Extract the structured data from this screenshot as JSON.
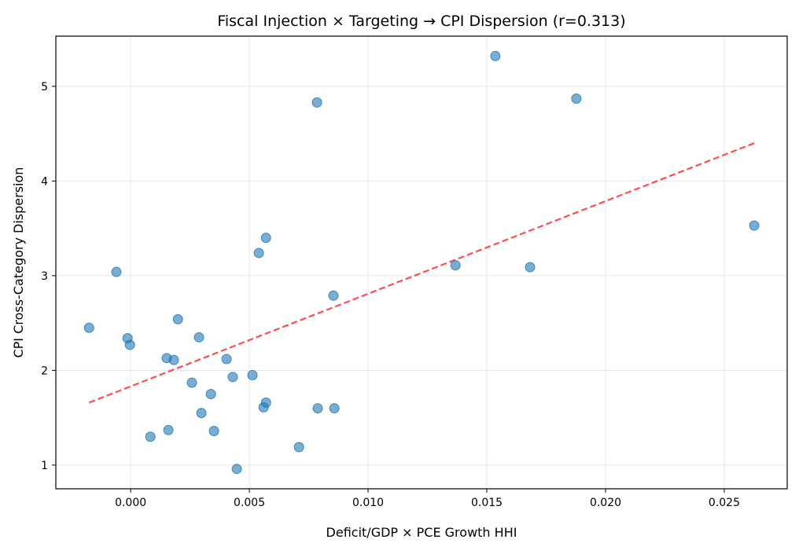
{
  "chart_data": {
    "type": "scatter",
    "title": "Fiscal Injection × Targeting → CPI Dispersion (r=0.313)",
    "xlabel": "Deficit/GDP × PCE Growth HHI",
    "ylabel": "CPI Cross-Category Dispersion",
    "xlim": [
      -0.00315,
      0.02765
    ],
    "ylim": [
      0.75,
      5.53
    ],
    "xticks": [
      0.0,
      0.005,
      0.01,
      0.015,
      0.02,
      0.025
    ],
    "xtick_labels": [
      "0.000",
      "0.005",
      "0.010",
      "0.015",
      "0.020",
      "0.025"
    ],
    "yticks": [
      1,
      2,
      3,
      4,
      5
    ],
    "ytick_labels": [
      "1",
      "2",
      "3",
      "4",
      "5"
    ],
    "grid": true,
    "point_color": "#1f77b4",
    "trend_color": "#ff0000",
    "points": [
      [
        -0.00175,
        2.45
      ],
      [
        -0.0006,
        3.04
      ],
      [
        -0.00013,
        2.34
      ],
      [
        -3e-05,
        2.27
      ],
      [
        0.00083,
        1.3
      ],
      [
        0.00152,
        2.13
      ],
      [
        0.00159,
        1.37
      ],
      [
        0.00182,
        2.11
      ],
      [
        0.00199,
        2.54
      ],
      [
        0.00258,
        1.87
      ],
      [
        0.00288,
        2.35
      ],
      [
        0.00298,
        1.55
      ],
      [
        0.00338,
        1.75
      ],
      [
        0.00351,
        1.36
      ],
      [
        0.00404,
        2.12
      ],
      [
        0.0043,
        1.93
      ],
      [
        0.00447,
        0.96
      ],
      [
        0.00513,
        1.95
      ],
      [
        0.0054,
        3.24
      ],
      [
        0.0056,
        1.61
      ],
      [
        0.0057,
        1.66
      ],
      [
        0.0057,
        3.4
      ],
      [
        0.00709,
        1.19
      ],
      [
        0.00785,
        4.83
      ],
      [
        0.00788,
        1.6
      ],
      [
        0.00854,
        2.79
      ],
      [
        0.00858,
        1.6
      ],
      [
        0.01368,
        3.11
      ],
      [
        0.01536,
        5.32
      ],
      [
        0.01682,
        3.09
      ],
      [
        0.01877,
        4.87
      ],
      [
        0.02626,
        3.53
      ]
    ],
    "trendline": [
      [
        -0.00175,
        1.66
      ],
      [
        0.02626,
        4.4
      ]
    ]
  }
}
